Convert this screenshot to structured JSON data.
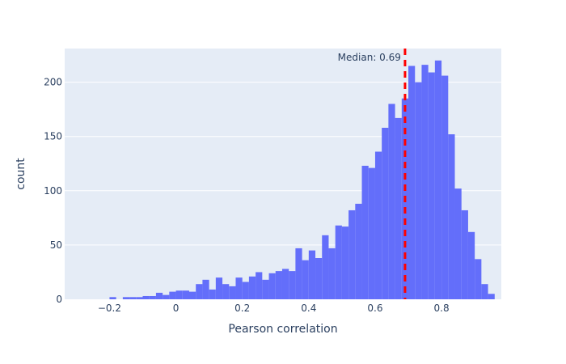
{
  "chart_data": {
    "type": "bar",
    "xlabel": "Pearson correlation",
    "ylabel": "count",
    "bin_width": 0.02,
    "bins_start": -0.2,
    "values": [
      2,
      0,
      2,
      2,
      2,
      3,
      3,
      6,
      4,
      7,
      8,
      8,
      7,
      14,
      18,
      9,
      20,
      14,
      12,
      20,
      16,
      21,
      25,
      18,
      24,
      26,
      28,
      26,
      47,
      36,
      45,
      38,
      59,
      47,
      68,
      67,
      82,
      88,
      123,
      121,
      136,
      158,
      180,
      167,
      185,
      215,
      200,
      216,
      209,
      220,
      206,
      152,
      102,
      82,
      62,
      37,
      14,
      5
    ],
    "xlim": [
      -0.335,
      0.98
    ],
    "ylim": [
      0,
      231
    ],
    "xticks": [
      {
        "value": -0.2,
        "label": "−0.2"
      },
      {
        "value": 0,
        "label": "0"
      },
      {
        "value": 0.2,
        "label": "0.2"
      },
      {
        "value": 0.4,
        "label": "0.4"
      },
      {
        "value": 0.6,
        "label": "0.6"
      },
      {
        "value": 0.8,
        "label": "0.8"
      }
    ],
    "yticks": [
      {
        "value": 0,
        "label": "0"
      },
      {
        "value": 50,
        "label": "50"
      },
      {
        "value": 100,
        "label": "100"
      },
      {
        "value": 150,
        "label": "150"
      },
      {
        "value": 200,
        "label": "200"
      }
    ],
    "median": {
      "value": 0.69,
      "label": "Median: 0.69",
      "color": "#ff0000"
    },
    "colors": {
      "bar": "#636efa",
      "plot_bg": "#e5ecf6",
      "grid": "#ffffff",
      "text": "#2a3f5f"
    },
    "grid": true,
    "legend": "none"
  }
}
